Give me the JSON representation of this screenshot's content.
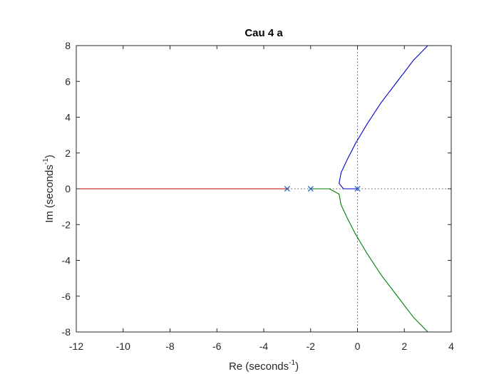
{
  "chart_data": {
    "type": "line",
    "title": "Cau 4 a",
    "xlabel": {
      "text": "Re (seconds",
      "sup": "-1",
      "tail": ")"
    },
    "ylabel": {
      "text": "Im (seconds",
      "sup": "-1",
      "tail": ")"
    },
    "xlim": [
      -12,
      4
    ],
    "ylim": [
      -8,
      8
    ],
    "xticks": [
      -12,
      -10,
      -8,
      -6,
      -4,
      -2,
      0,
      2,
      4
    ],
    "yticks": [
      -8,
      -6,
      -4,
      -2,
      0,
      2,
      4,
      6,
      8
    ],
    "xtick_labels": [
      "-12",
      "-10",
      "-8",
      "-6",
      "-4",
      "-2",
      "0",
      "2",
      "4"
    ],
    "ytick_labels": [
      "-8",
      "-6",
      "-4",
      "-2",
      "0",
      "2",
      "4",
      "6",
      "8"
    ],
    "grid": false,
    "poles": [
      {
        "x": -3,
        "y": 0
      },
      {
        "x": -2,
        "y": 0
      },
      {
        "x": 0,
        "y": 0
      }
    ],
    "series": [
      {
        "color": "#cc0000",
        "x": [
          -3,
          -4,
          -6,
          -8,
          -10,
          -12
        ],
        "y": [
          0,
          0,
          0,
          0,
          0,
          0
        ]
      },
      {
        "color": "#0000cc",
        "x": [
          0,
          -0.3,
          -0.6,
          -0.785,
          -0.7,
          -0.45,
          -0.1,
          0.4,
          1.0,
          1.7,
          2.4,
          3.0
        ],
        "y": [
          0,
          0,
          0,
          0.3,
          0.9,
          1.6,
          2.5,
          3.6,
          4.8,
          6.0,
          7.2,
          8.0
        ]
      },
      {
        "color": "#008000",
        "x": [
          -2,
          -1.6,
          -1.2,
          -0.785,
          -0.7,
          -0.45,
          -0.1,
          0.4,
          1.0,
          1.7,
          2.4,
          3.0
        ],
        "y": [
          0,
          0,
          0,
          -0.3,
          -0.9,
          -1.6,
          -2.5,
          -3.6,
          -4.8,
          -6.0,
          -7.2,
          -8.0
        ]
      }
    ],
    "reference_lines": {
      "x": 0,
      "y": 0,
      "style": "dotted"
    }
  }
}
